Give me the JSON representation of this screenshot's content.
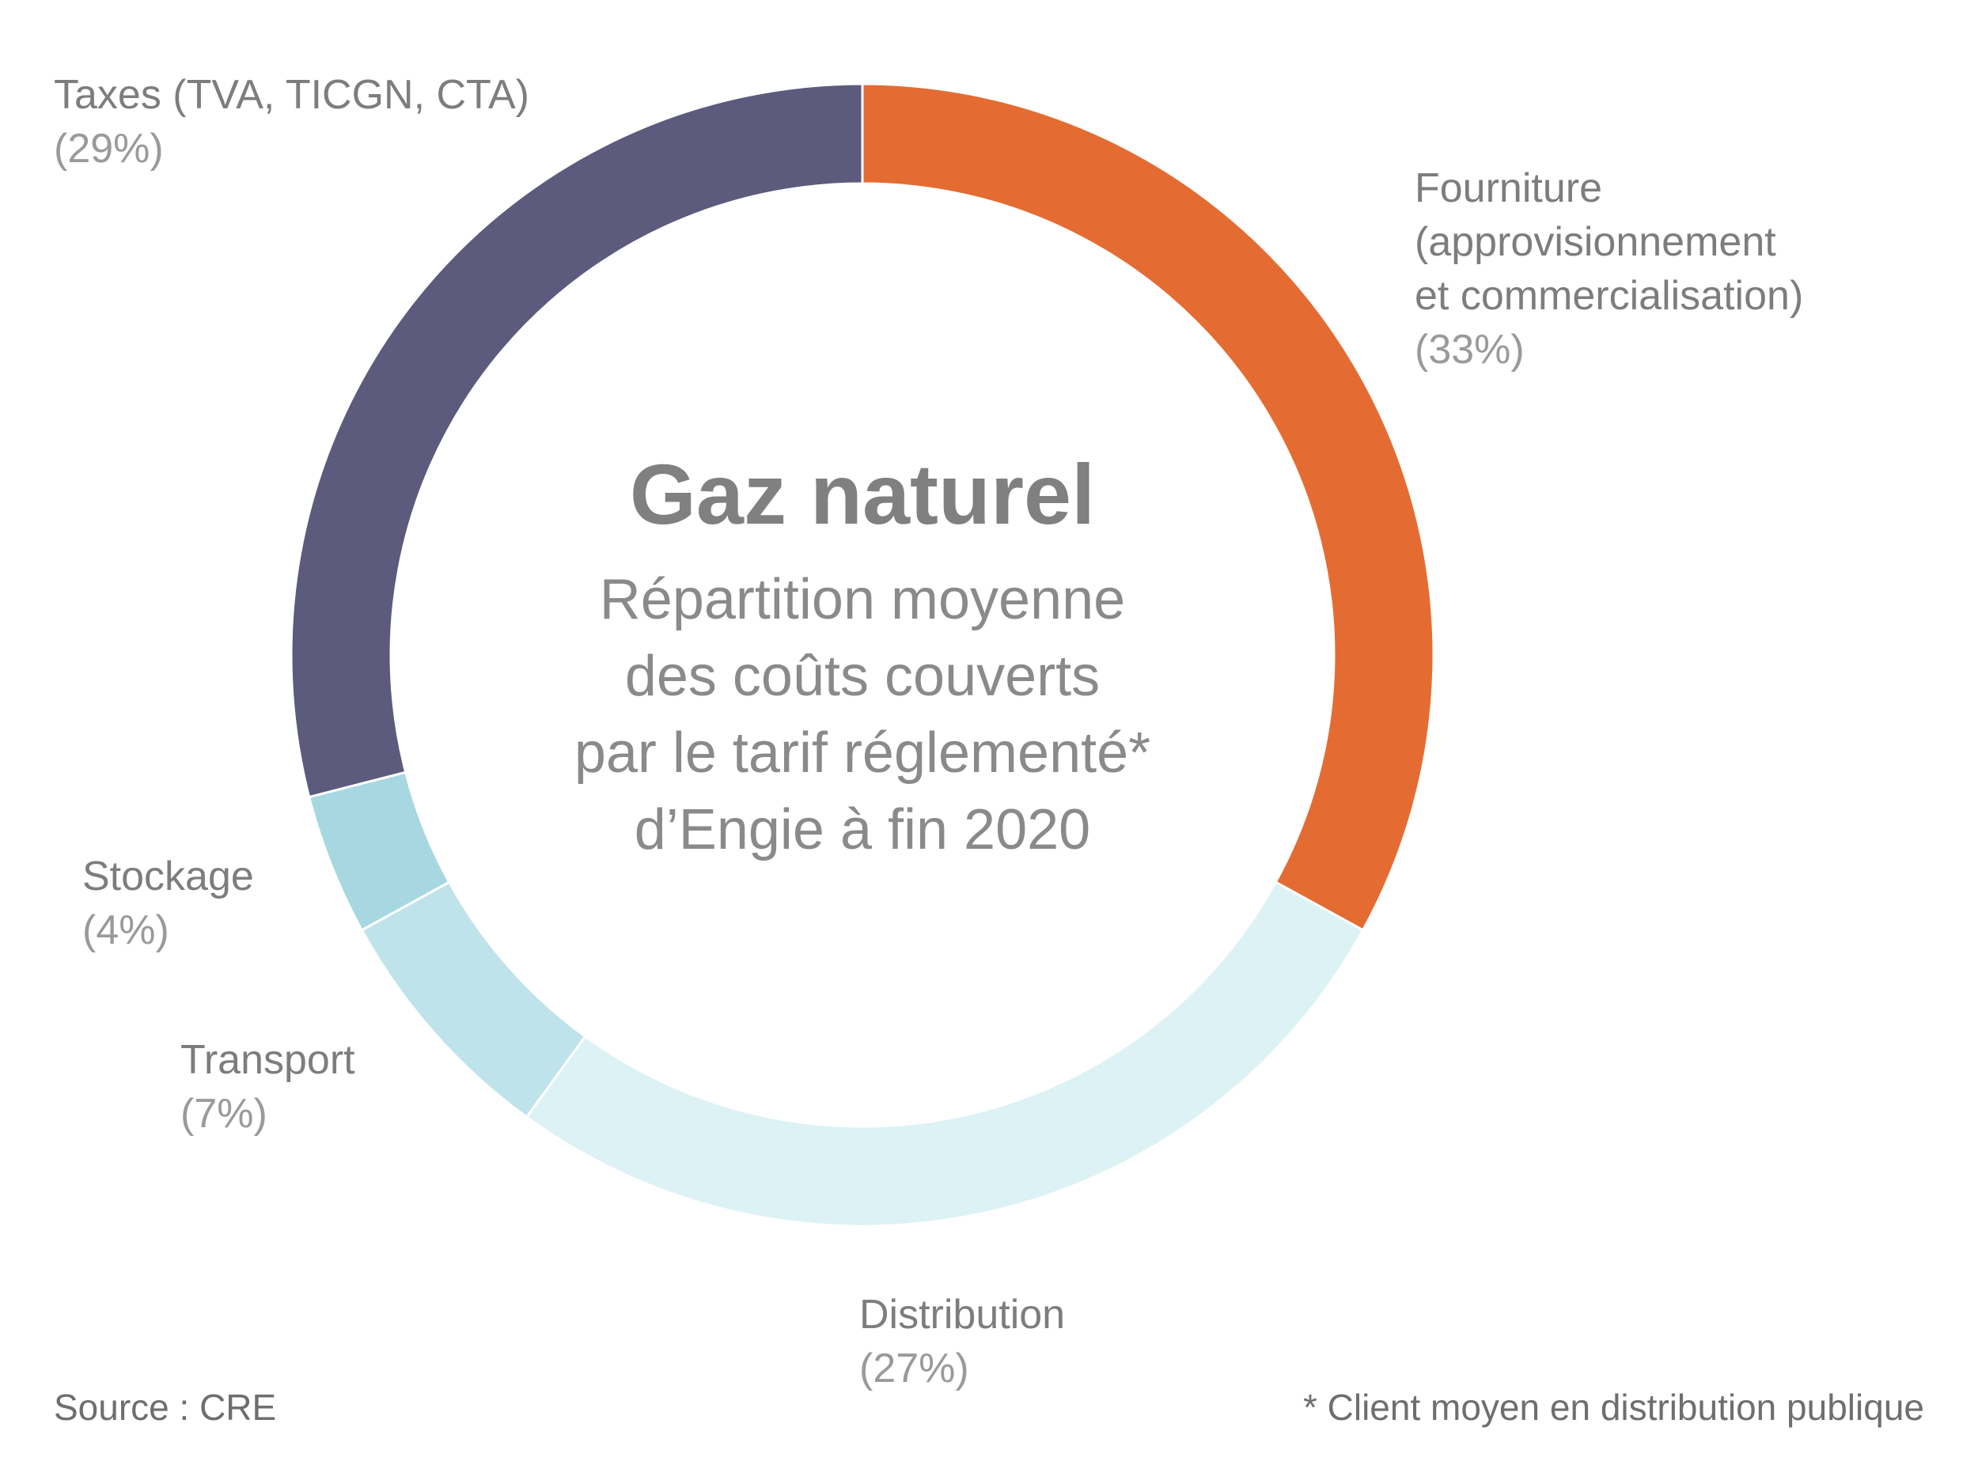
{
  "chart_data": {
    "type": "pie",
    "variant": "donut",
    "title": "Gaz naturel",
    "subtitle_lines": [
      "Répartition moyenne",
      "des coûts couverts",
      "par le tarif réglementé*",
      "d’Engie à fin 2020"
    ],
    "slices": [
      {
        "name_lines": [
          "Fourniture",
          "(approvisionnement",
          "et commercialisation)"
        ],
        "value": 33,
        "pct_label": "(33%)",
        "color": "#e46c32"
      },
      {
        "name_lines": [
          "Distribution"
        ],
        "value": 27,
        "pct_label": "(27%)",
        "color": "#ddf2f5"
      },
      {
        "name_lines": [
          "Transport"
        ],
        "value": 7,
        "pct_label": "(7%)",
        "color": "#bfe3ea"
      },
      {
        "name_lines": [
          "Stockage"
        ],
        "value": 4,
        "pct_label": "(4%)",
        "color": "#a7d8e2"
      },
      {
        "name_lines": [
          "Taxes (TVA, TICGN, CTA)"
        ],
        "value": 29,
        "pct_label": "(29%)",
        "color": "#5c5a7d"
      }
    ],
    "source": "Source : CRE",
    "footnote": "* Client moyen en distribution publique"
  }
}
